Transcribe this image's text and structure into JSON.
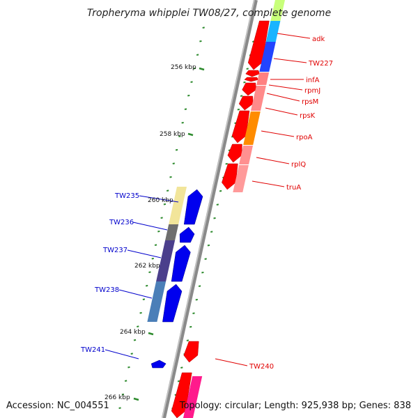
{
  "title": "Tropheryma whipplei TW08/27, complete genome",
  "footer": {
    "accession": "Accession: NC_004551",
    "summary": "Topology: circular; Length: 925,938 bp; Genes: 838"
  },
  "colors": {
    "backbone": "#8a8a8a",
    "tick": "#2e8b2e",
    "forward_label": "#e00000",
    "reverse_label": "#0000cc"
  },
  "scale_ticks": [
    "256 kbp",
    "258 kbp",
    "260 kbp",
    "262 kbp",
    "264 kbp",
    "266 kbp"
  ],
  "forward_labels": [
    "adk",
    "TW227",
    "infA",
    "rpmJ",
    "rpsM",
    "rpsK",
    "rpoA",
    "rplQ",
    "truA",
    "TW240"
  ],
  "reverse_labels": [
    "TW235",
    "TW236",
    "TW237",
    "TW238",
    "TW241"
  ]
}
